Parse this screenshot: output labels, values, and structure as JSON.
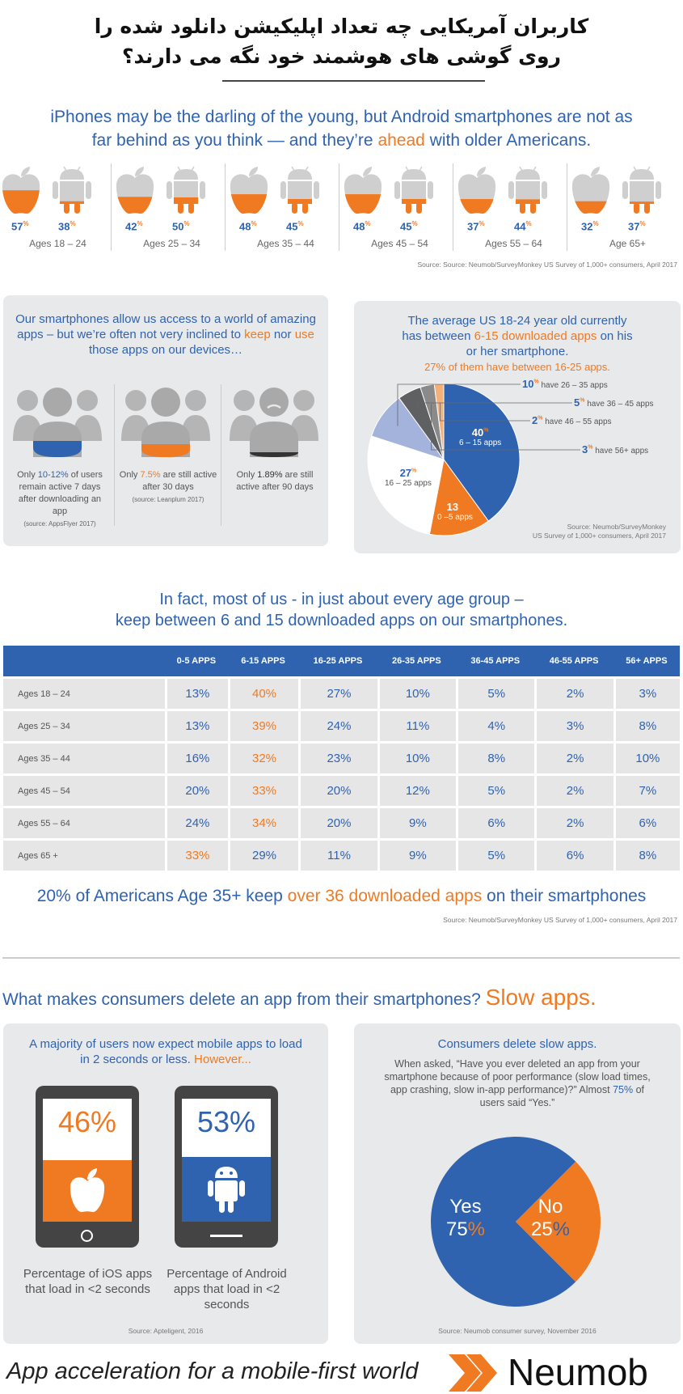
{
  "header": {
    "fa_line1": "کاربران آمریکایی چه تعداد اپلیکیشن دانلود شده را",
    "fa_line2": "روی گوشی های هوشمند خود نگه می دارند؟"
  },
  "intro": {
    "line1": "iPhones may be the darling of the young, but Android smartphones are not as",
    "line2_a": "far behind as you think — and they’re ",
    "line2_b": "ahead",
    "line2_c": " with older Americans."
  },
  "chart_data": [
    {
      "type": "bar",
      "categories": [
        "Ages 18 – 24",
        "Ages 25 – 34",
        "Ages 35 – 44",
        "Ages 45 – 54",
        "Ages 55 – 64",
        "Age 65+"
      ],
      "series": [
        {
          "values": [
            57,
            42,
            48,
            48,
            37,
            32
          ]
        },
        {
          "values": [
            38,
            50,
            45,
            45,
            44,
            37
          ]
        }
      ],
      "colors": {
        "apple_fill": "#f07a22",
        "android_fill": "#f07a22",
        "icon_gray": "#cfcfcf"
      }
    },
    {
      "type": "pie",
      "labels": [
        "6 – 15 apps",
        "0 –5 apps",
        "16 – 25 apps",
        "have 26 – 35 apps",
        "have 36 – 45 apps",
        "have 46 – 55 apps",
        "have 56+ apps"
      ],
      "values": [
        40,
        13,
        27,
        10,
        5,
        2,
        3
      ],
      "colors": [
        "#2f63b0",
        "#f07a22",
        "#ffffff",
        "#a3b3db",
        "#5f6062",
        "#f5b07a",
        "#8a8a8a"
      ]
    },
    {
      "type": "table",
      "columns": [
        "",
        "0-5 APPS",
        "6-15 APPS",
        "16-25 APPS",
        "26-35 APPS",
        "36-45 APPS",
        "46-55 APPS",
        "56+ APPS"
      ],
      "rows": [
        [
          "Ages 18 – 24",
          "13%",
          "40%",
          "27%",
          "10%",
          "5%",
          "2%",
          "3%"
        ],
        [
          "Ages 25 – 34",
          "13%",
          "39%",
          "24%",
          "11%",
          "4%",
          "3%",
          "8%"
        ],
        [
          "Ages 35 – 44",
          "16%",
          "32%",
          "23%",
          "10%",
          "8%",
          "2%",
          "10%"
        ],
        [
          "Ages 45 – 54",
          "20%",
          "33%",
          "20%",
          "12%",
          "5%",
          "2%",
          "7%"
        ],
        [
          "Ages 55 – 64",
          "24%",
          "34%",
          "20%",
          "9%",
          "6%",
          "2%",
          "6%"
        ],
        [
          "Ages 65 +",
          "33%",
          "29%",
          "11%",
          "9%",
          "5%",
          "6%",
          "8%"
        ]
      ],
      "highlight_max": true
    },
    {
      "type": "pie",
      "labels": [
        "Yes",
        "No"
      ],
      "values": [
        75,
        25
      ],
      "colors": [
        "#2f63b0",
        "#f07a22"
      ]
    }
  ],
  "age_source": "Source: Source: Neumob/SurveyMonkey US Survey of 1,000+ consumers, April 2017",
  "retention": {
    "title_a": "Our smartphones allow us access to a world of amazing apps – but we’re often not very inclined to ",
    "title_keep": "keep",
    "title_nor": " nor ",
    "title_use": "use",
    "title_b": " those apps on our devices…",
    "items": [
      {
        "pre": "Only ",
        "value": "10-12%",
        "post": " of users remain active 7 days after downloading an app",
        "source": "(source: AppsFlyer 2017)"
      },
      {
        "pre": "Only ",
        "value": "7.5%",
        "post": " are still active after 30 days",
        "source": "(source: Leanplum 2017)"
      },
      {
        "pre": "Only ",
        "value": "1.89%",
        "post": " are still active after 90 days",
        "source": ""
      }
    ]
  },
  "avg": {
    "line1": "The average US 18-24 year old currently",
    "line2_a": "has between ",
    "line2_b": "6-15 downloaded apps",
    "line2_c": " on his",
    "line3": "or her smartphone.",
    "line4": "27% of them have between 16-25 apps.",
    "source1": "Source: Neumob/SurveyMonkey",
    "source2": "US Survey of 1,000+ consumers, April 2017"
  },
  "section2": {
    "line1": "In fact, most of us - in just about every age group –",
    "line2": "keep between 6 and 15 downloaded apps on our smartphones."
  },
  "stat20": {
    "a": "20% of Americans Age 35+ keep ",
    "b": "over 36 downloaded apps",
    "c": " on their smartphones",
    "source": "Source: Neumob/SurveyMonkey US Survey of 1,000+ consumers, April 2017"
  },
  "slow": {
    "question": "What makes consumers delete an app from their smartphones?",
    "answer": "Slow apps."
  },
  "load": {
    "title_a": "A majority of users now expect mobile apps to load in 2 seconds or less. ",
    "title_b": "However...",
    "ios_pct": "46%",
    "android_pct": "53%",
    "ios_caption": "Percentage of iOS apps that load in <2 seconds",
    "android_caption": "Percentage of Android apps that load in <2 seconds",
    "source": "Source: Apteligent, 2016"
  },
  "delete": {
    "title": "Consumers delete slow apps.",
    "body_a": "When asked, “Have you ever deleted an app from your smartphone because of poor performance (slow load times, app crashing, slow in-app performance)?” Almost ",
    "body_b": "75%",
    "body_c": " of users said “Yes.”",
    "yes_label": "Yes",
    "yes_value": "75",
    "no_label": "No",
    "no_value": "25",
    "source": "Source: Neumob consumer survey, November 2016"
  },
  "footer": {
    "tagline": "App acceleration for a mobile-first world",
    "brand": "Neumob"
  }
}
